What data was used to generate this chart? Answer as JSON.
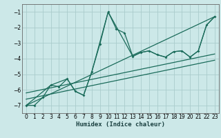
{
  "xlabel": "Humidex (Indice chaleur)",
  "bg_color": "#cce8e8",
  "grid_color": "#aacccc",
  "line_color": "#1a6b5a",
  "xlim": [
    -0.5,
    23.5
  ],
  "ylim": [
    -7.5,
    -0.5
  ],
  "xticks": [
    0,
    1,
    2,
    3,
    4,
    5,
    6,
    7,
    8,
    9,
    10,
    11,
    12,
    13,
    14,
    15,
    16,
    17,
    18,
    19,
    20,
    21,
    22,
    23
  ],
  "yticks": [
    -7,
    -6,
    -5,
    -4,
    -3,
    -2,
    -1
  ],
  "line1_x": [
    0,
    1,
    2,
    3,
    4,
    5,
    6,
    7,
    8,
    9,
    10,
    11,
    12,
    13,
    14,
    15,
    16,
    17,
    18,
    19,
    20,
    21,
    22,
    23
  ],
  "line1_y": [
    -7.0,
    -7.0,
    -6.5,
    -5.7,
    -5.8,
    -5.3,
    -6.1,
    -6.35,
    -4.85,
    -3.05,
    -1.0,
    -2.1,
    -2.35,
    -3.85,
    -3.6,
    -3.5,
    -3.75,
    -3.9,
    -3.55,
    -3.5,
    -3.9,
    -3.5,
    -1.85,
    -1.3
  ],
  "line2_x": [
    0,
    3,
    5,
    6,
    7,
    8,
    10,
    13,
    14,
    15,
    16,
    17,
    18,
    19,
    20,
    21,
    22,
    23
  ],
  "line2_y": [
    -7.0,
    -5.7,
    -5.3,
    -6.1,
    -6.35,
    -4.85,
    -1.0,
    -3.85,
    -3.6,
    -3.5,
    -3.75,
    -3.9,
    -3.55,
    -3.5,
    -3.9,
    -3.5,
    -1.85,
    -1.3
  ],
  "line3_x": [
    0,
    23
  ],
  "line3_y": [
    -7.0,
    -1.3
  ],
  "line4_x": [
    0,
    23
  ],
  "line4_y": [
    -6.2,
    -3.7
  ],
  "line5_x": [
    0,
    23
  ],
  "line5_y": [
    -6.6,
    -4.1
  ]
}
